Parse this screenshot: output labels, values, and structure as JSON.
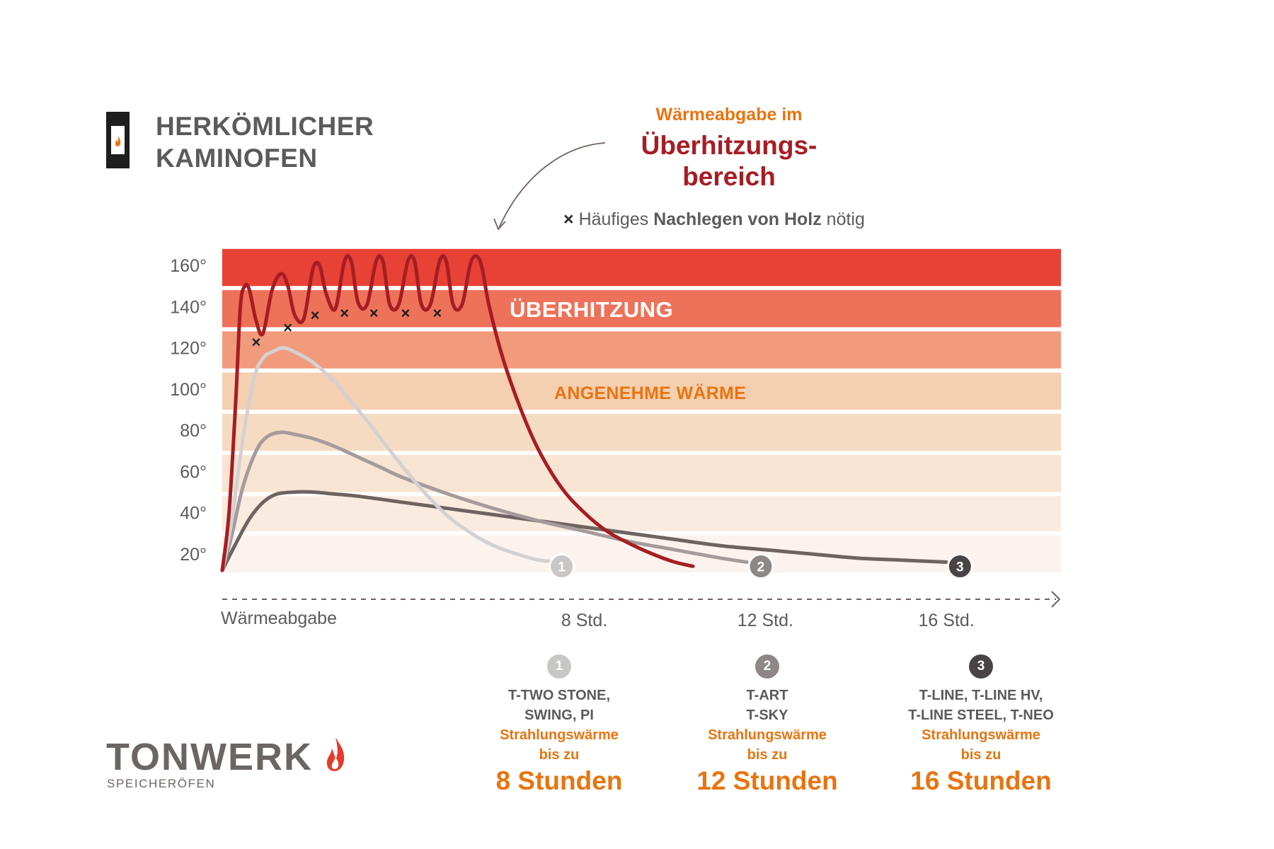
{
  "legend": {
    "line1": "HERKÖMLICHER",
    "line2": "KAMINOFEN"
  },
  "callout": {
    "small": "Wärmeabgabe im",
    "big1": "Überhitzungs-",
    "big2": "bereich"
  },
  "note": {
    "mark": "×",
    "pre": "Häufiges ",
    "bold": "Nachlegen von Holz",
    "post": " nötig"
  },
  "bands": {
    "overheat": "ÜBERHITZUNG",
    "comfort": "ANGENEHME WÄRME"
  },
  "colors": {
    "band_top": "#e84136",
    "band_2": "#ee715a",
    "band_3": "#f29a7c",
    "band_4": "#f4cfb0",
    "band_5": "#f6dbc3",
    "band_6": "#f8e4d2",
    "band_7": "#f9ebdf",
    "band_8": "#fcf3ee",
    "stove_curve": "#a61d23",
    "series_1": "#d3d1d1",
    "series_2": "#a59b9b",
    "series_3": "#6e6360",
    "accent": "#e87410"
  },
  "products": [
    {
      "num": "1",
      "names_1": "T-TWO STONE,",
      "names_2": "SWING, PI",
      "rad_1": "Strahlungswärme",
      "rad_2": "bis zu",
      "hours": "8 Stunden",
      "color": "#c9c6c6"
    },
    {
      "num": "2",
      "names_1": "T-ART",
      "names_2": "T-SKY",
      "rad_1": "Strahlungswärme",
      "rad_2": "bis zu",
      "hours": "12 Stunden",
      "color": "#8e8787"
    },
    {
      "num": "3",
      "names_1": "T-LINE, T-LINE HV,",
      "names_2": "T-LINE STEEL, T-NEO",
      "rad_1": "Strahlungswärme",
      "rad_2": "bis zu",
      "hours": "16 Stunden",
      "color": "#4a4446"
    }
  ],
  "logo": {
    "name": "TONWERK",
    "sub": "SPEICHERÖFEN",
    "icon": "flame-icon"
  },
  "chart_data": {
    "type": "line",
    "title": "",
    "xlabel": "Wärmeabgabe",
    "ylabel": "",
    "xlim": [
      0,
      18.5
    ],
    "ylim": [
      10,
      170
    ],
    "yticks": [
      {
        "v": 20,
        "label": "20°"
      },
      {
        "v": 40,
        "label": "40°"
      },
      {
        "v": 60,
        "label": "60°"
      },
      {
        "v": 80,
        "label": "80°"
      },
      {
        "v": 100,
        "label": "100°"
      },
      {
        "v": 120,
        "label": "120°"
      },
      {
        "v": 140,
        "label": "140°"
      },
      {
        "v": 160,
        "label": "160°"
      }
    ],
    "xticks": [
      {
        "v": 8,
        "label": "8 Std."
      },
      {
        "v": 12,
        "label": "12 Std."
      },
      {
        "v": 16,
        "label": "16 Std."
      }
    ],
    "bands": [
      {
        "from": 150,
        "to": 168,
        "color": "#e84136"
      },
      {
        "from": 130,
        "to": 148,
        "color": "#ee715a"
      },
      {
        "from": 110,
        "to": 128,
        "color": "#f29a7c"
      },
      {
        "from": 90,
        "to": 108,
        "color": "#f4cfb0"
      },
      {
        "from": 70,
        "to": 88,
        "color": "#f6dbc3"
      },
      {
        "from": 50,
        "to": 68,
        "color": "#f8e4d2"
      },
      {
        "from": 31,
        "to": 48,
        "color": "#f9ebdf"
      },
      {
        "from": 11,
        "to": 29,
        "color": "#fcf3ee"
      }
    ],
    "series": [
      {
        "color": "#a61d23",
        "x": [
          0,
          0.15,
          0.3,
          0.4,
          0.5,
          0.6,
          0.75,
          0.9,
          1.1,
          1.3,
          1.45,
          1.6,
          1.8,
          2.0,
          2.15,
          2.3,
          2.5,
          2.7,
          2.85,
          3.0,
          3.2,
          3.4,
          3.55,
          3.7,
          3.9,
          4.1,
          4.25,
          4.4,
          4.6,
          4.8,
          4.95,
          5.1,
          5.3,
          5.5,
          5.7,
          5.9,
          6.2,
          6.6,
          7.0,
          7.5,
          8.0,
          8.5,
          9.0,
          9.5,
          10.0,
          10.4
        ],
        "y": [
          12,
          40,
          95,
          140,
          150,
          148,
          133,
          127,
          148,
          156,
          150,
          136,
          134,
          158,
          160,
          146,
          139,
          162,
          162,
          142,
          141,
          162,
          162,
          141,
          141,
          162,
          162,
          141,
          141,
          162,
          162,
          141,
          141,
          162,
          162,
          140,
          115,
          90,
          70,
          52,
          40,
          31,
          25,
          20,
          16,
          14
        ]
      },
      {
        "color": "#d3d1d1",
        "x": [
          0,
          0.2,
          0.45,
          0.7,
          0.9,
          1.1,
          1.35,
          1.6,
          2.0,
          2.5,
          3.0,
          3.5,
          4.0,
          4.5,
          5.0,
          5.5,
          6.0,
          6.5,
          7.0,
          7.5
        ],
        "y": [
          12,
          35,
          75,
          105,
          115,
          118,
          120,
          118,
          113,
          103,
          90,
          76,
          62,
          49,
          38,
          30,
          24,
          20,
          17,
          16
        ]
      },
      {
        "color": "#a59b9b",
        "x": [
          0,
          0.2,
          0.45,
          0.75,
          1.0,
          1.3,
          1.6,
          2.0,
          2.5,
          3.0,
          3.5,
          4.0,
          5.0,
          6.0,
          7.0,
          8.0,
          9.0,
          10.0,
          11.0,
          11.6
        ],
        "y": [
          12,
          28,
          52,
          70,
          77,
          79,
          78,
          76,
          72,
          67,
          62,
          57,
          49,
          42,
          36,
          31,
          26,
          22,
          18,
          16
        ]
      },
      {
        "color": "#6e6360",
        "x": [
          0,
          0.3,
          0.6,
          0.9,
          1.2,
          1.6,
          2.0,
          2.5,
          3.0,
          4.0,
          5.0,
          6.0,
          7.0,
          8.0,
          9.0,
          10.0,
          11.0,
          12.0,
          13.0,
          14.0,
          15.0,
          16.0
        ],
        "y": [
          12,
          25,
          37,
          45,
          49,
          50,
          50,
          49,
          48,
          45,
          42,
          39,
          36,
          33,
          30,
          27,
          24,
          22,
          20,
          18,
          17,
          16
        ]
      }
    ],
    "markers": {
      "label": "×",
      "x": [
        0.75,
        1.45,
        2.05,
        2.7,
        3.35,
        4.05,
        4.75
      ],
      "y": [
        123,
        130,
        136,
        137,
        137,
        137,
        137
      ]
    },
    "endpoints": [
      {
        "x": 7.5,
        "y": 16,
        "label": "1",
        "color": "#c9c6c6"
      },
      {
        "x": 11.9,
        "y": 16,
        "label": "2",
        "color": "#8e8787"
      },
      {
        "x": 16.3,
        "y": 16,
        "label": "3",
        "color": "#4a4446"
      }
    ]
  }
}
